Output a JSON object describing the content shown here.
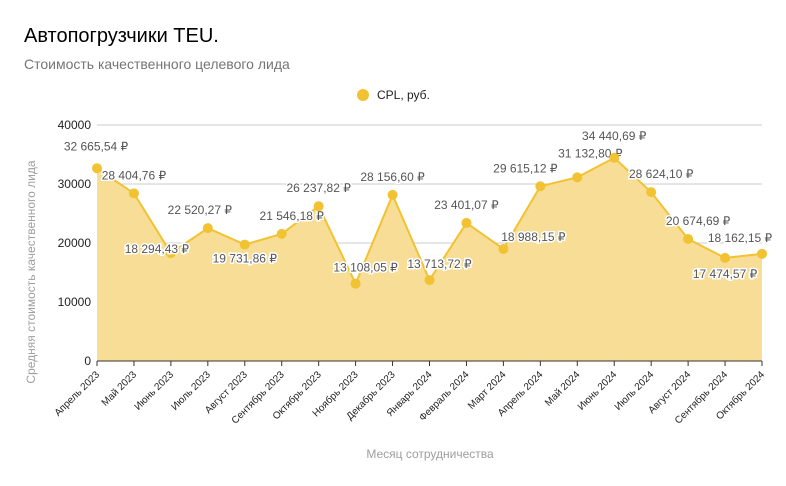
{
  "chart_data": {
    "type": "area",
    "title": "Автопогрузчики TEU.",
    "subtitle": "Стоимость качественного целевого лида",
    "xlabel": "Месяц сотрудничества",
    "ylabel": "Средняя стоимость качественного лида",
    "ylim": [
      0,
      40000
    ],
    "yticks": [
      "0",
      "10000",
      "20000",
      "30000",
      "40000"
    ],
    "ytick_values": [
      0,
      10000,
      20000,
      30000,
      40000
    ],
    "grid": true,
    "legend_position": "top",
    "categories": [
      "Апрель 2023",
      "Май 2023",
      "Июнь 2023",
      "Июль 2023",
      "Август 2023",
      "Сентябрь 2023",
      "Октябрь 2023",
      "Ноябрь 2023",
      "Декабрь 2023",
      "Январь 2024",
      "Февраль 2024",
      "Март 2024",
      "Апрель 2024",
      "Май 2024",
      "Июнь 2024",
      "Июль 2024",
      "Август 2024",
      "Сентябрь 2024",
      "Октябрь 2024"
    ],
    "series": [
      {
        "name": "CPL, руб.",
        "color": "#f1c232",
        "fill_color": "#f7dd95",
        "values": [
          32665.54,
          28404.76,
          18294.43,
          22520.27,
          19731.86,
          21546.18,
          26237.82,
          13108.05,
          28156.6,
          13713.72,
          23401.07,
          18988.15,
          29615.12,
          31132.8,
          34440.69,
          28624.1,
          20674.69,
          17474.57,
          18162.15
        ],
        "labels": [
          "32 665,54 ₽",
          "28 404,76 ₽",
          "18 294,43 ₽",
          "22 520,27 ₽",
          "19 731,86 ₽",
          "21 546,18 ₽",
          "26 237,82 ₽",
          "13 108,05 ₽",
          "28 156,60 ₽",
          "13 713,72 ₽",
          "23 401,07 ₽",
          "18 988,15 ₽",
          "29 615,12 ₽",
          "31 132,80 ₽",
          "34 440,69 ₽",
          "28 624,10 ₽",
          "20 674,69 ₽",
          "17 474,57 ₽",
          "18 162,15 ₽"
        ]
      }
    ]
  }
}
